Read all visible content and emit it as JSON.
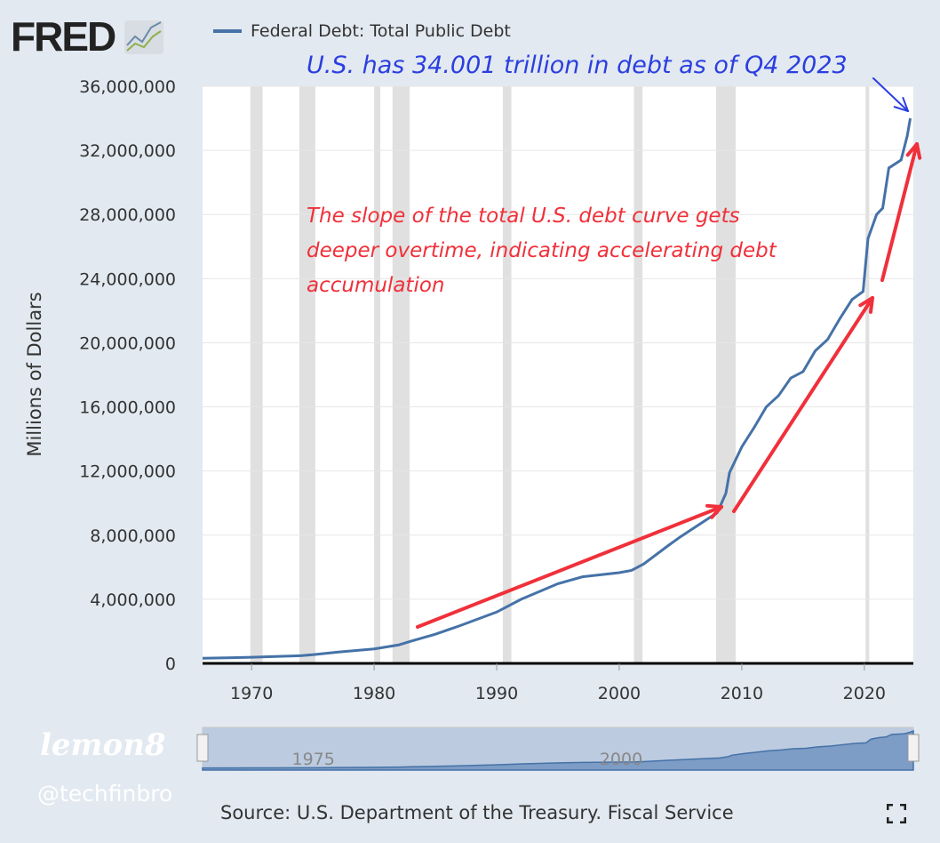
{
  "header": {
    "logo": "FRED",
    "logo_icon": "chart-line-icon"
  },
  "watermark": {
    "brand": "lemon8",
    "handle": "@techfinbro"
  },
  "source": "Source: U.S. Department of the Treasury. Fiscal Service",
  "fullscreen_icon": "fullscreen-icon",
  "navigator": {
    "labels": [
      "1975",
      "2000"
    ]
  },
  "annotations": {
    "top": "U.S. has 34.001 trillion in debt as of Q4 2023",
    "middle": [
      "The slope of the total U.S. debt curve gets",
      "deeper overtime, indicating accelerating debt",
      "accumulation"
    ],
    "colors": {
      "top": "#2b3ee0",
      "middle": "#f0303a"
    }
  },
  "chart_data": {
    "type": "line",
    "title": "",
    "ylabel": "Millions of Dollars",
    "xlim": [
      1966,
      2024
    ],
    "ylim": [
      0,
      36000000
    ],
    "xticks": [
      1970,
      1980,
      1990,
      2000,
      2010,
      2020
    ],
    "yticks": [
      0,
      4000000,
      8000000,
      12000000,
      16000000,
      20000000,
      24000000,
      28000000,
      32000000,
      36000000
    ],
    "ytick_labels": [
      "0",
      "4,000,000",
      "8,000,000",
      "12,000,000",
      "16,000,000",
      "20,000,000",
      "24,000,000",
      "28,000,000",
      "32,000,000",
      "36,000,000"
    ],
    "grid": true,
    "legend_position": "top",
    "recessions": [
      [
        1969.9,
        1970.9
      ],
      [
        1973.9,
        1975.2
      ],
      [
        1980.0,
        1980.5
      ],
      [
        1981.5,
        1982.9
      ],
      [
        1990.5,
        1991.2
      ],
      [
        2001.2,
        2001.9
      ],
      [
        2007.9,
        2009.5
      ],
      [
        2020.1,
        2020.4
      ]
    ],
    "series": [
      {
        "name": "Federal Debt: Total Public Debt",
        "color": "#4572a7",
        "x": [
          1966,
          1968,
          1970,
          1972,
          1974,
          1975,
          1977,
          1980,
          1982,
          1983,
          1985,
          1987,
          1990,
          1992,
          1995,
          1997,
          2000,
          2001,
          2002,
          2004,
          2005,
          2007,
          2008,
          2008.7,
          2009,
          2010,
          2011,
          2012,
          2013,
          2014,
          2015,
          2016,
          2017,
          2018,
          2019,
          2019.9,
          2020.3,
          2021,
          2021.5,
          2022,
          2023,
          2023.5,
          2023.75
        ],
        "y": [
          320000,
          350000,
          380000,
          430000,
          480000,
          540000,
          700000,
          900000,
          1150000,
          1380000,
          1820000,
          2350000,
          3200000,
          4000000,
          4970000,
          5400000,
          5660000,
          5800000,
          6200000,
          7350000,
          7900000,
          8900000,
          9400000,
          10600000,
          11900000,
          13500000,
          14700000,
          16000000,
          16700000,
          17800000,
          18200000,
          19500000,
          20200000,
          21500000,
          22700000,
          23200000,
          26500000,
          28000000,
          28400000,
          30900000,
          31400000,
          32900000,
          34000000
        ]
      }
    ]
  }
}
